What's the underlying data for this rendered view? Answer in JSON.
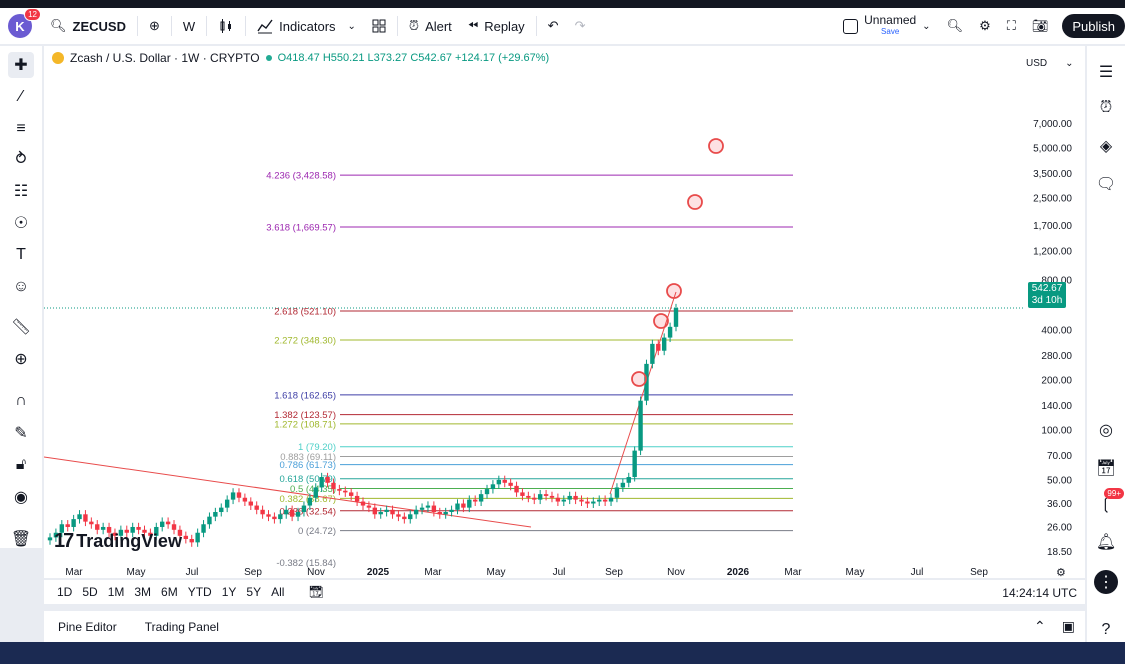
{
  "toolbar": {
    "avatar_letter": "K",
    "avatar_badge": "12",
    "symbol": "ZECUSD",
    "interval": "W",
    "indicators_label": "Indicators",
    "alert_label": "Alert",
    "replay_label": "Replay",
    "layout_name": "Unnamed",
    "save_label": "Save",
    "publish_label": "Publish"
  },
  "legend": {
    "title": "Zcash / U.S. Dollar · 1W · CRYPTO",
    "open": "O418.47",
    "high": "H550.21",
    "low": "L373.27",
    "close": "C542.67",
    "change": "+124.17 (+29.67%)"
  },
  "currency": "USD",
  "last_price": {
    "value": "542.67",
    "countdown": "3d 10h"
  },
  "watermark": "TradingView",
  "colors": {
    "up": "#089981",
    "down": "#f23645",
    "accent": "#2962ff"
  },
  "chart_data": {
    "type": "candlestick",
    "y_scale": "log",
    "price_ticks": [
      "7,000.00",
      "5,000.00",
      "3,500.00",
      "2,500.00",
      "1,700.00",
      "1,200.00",
      "800.00",
      "400.00",
      "280.00",
      "200.00",
      "140.00",
      "100.00",
      "70.00",
      "50.00",
      "36.00",
      "26.00",
      "18.50"
    ],
    "price_tick_values": [
      7000,
      5000,
      3500,
      2500,
      1700,
      1200,
      800,
      400,
      280,
      200,
      140,
      100,
      70,
      50,
      36,
      26,
      18.5
    ],
    "time_ticks": [
      "Mar",
      "May",
      "Jul",
      "Sep",
      "Nov",
      "2025",
      "Mar",
      "May",
      "Jul",
      "Sep",
      "Nov",
      "2026",
      "Mar",
      "May",
      "Jul",
      "Sep"
    ],
    "fib_levels": [
      {
        "label": "4.236 (3,428.58)",
        "value": 3428.58,
        "color": "#9c27b0"
      },
      {
        "label": "3.618 (1,669.57)",
        "value": 1669.57,
        "color": "#9c27b0"
      },
      {
        "label": "2.618 (521.10)",
        "value": 521.1,
        "color": "#b22833"
      },
      {
        "label": "2.272 (348.30)",
        "value": 348.3,
        "color": "#a0b82e"
      },
      {
        "label": "1.618 (162.65)",
        "value": 162.65,
        "color": "#3f3fa6"
      },
      {
        "label": "1.382 (123.57)",
        "value": 123.57,
        "color": "#b22833"
      },
      {
        "label": "1.272 (108.71)",
        "value": 108.71,
        "color": "#a0b82e"
      },
      {
        "label": "1 (79.20)",
        "value": 79.2,
        "color": "#4dd0c8"
      },
      {
        "label": "0.883 (69.11)",
        "value": 69.11,
        "color": "#9e9e9e"
      },
      {
        "label": "0.786 (61.73)",
        "value": 61.73,
        "color": "#4a9fd8"
      },
      {
        "label": "0.618 (50.79)",
        "value": 50.79,
        "color": "#26a69a"
      },
      {
        "label": "0.5 (44.35)",
        "value": 44.35,
        "color": "#4caf50"
      },
      {
        "label": "0.382 (38.67)",
        "value": 38.67,
        "color": "#a0b82e"
      },
      {
        "label": "0.236 (32.54)",
        "value": 32.54,
        "color": "#b22833"
      },
      {
        "label": "0 (24.72)",
        "value": 24.72,
        "color": "#787b86"
      },
      {
        "label": "-0.382 (15.84)",
        "value": 15.84,
        "color": "#787b86"
      }
    ]
  },
  "range": {
    "buttons": [
      "1D",
      "5D",
      "1M",
      "3M",
      "6M",
      "YTD",
      "1Y",
      "5Y",
      "All"
    ],
    "time": "14:24:14 UTC"
  },
  "bottom": {
    "pine_editor": "Pine Editor",
    "trading_panel": "Trading Panel"
  },
  "right_badge": "99+"
}
